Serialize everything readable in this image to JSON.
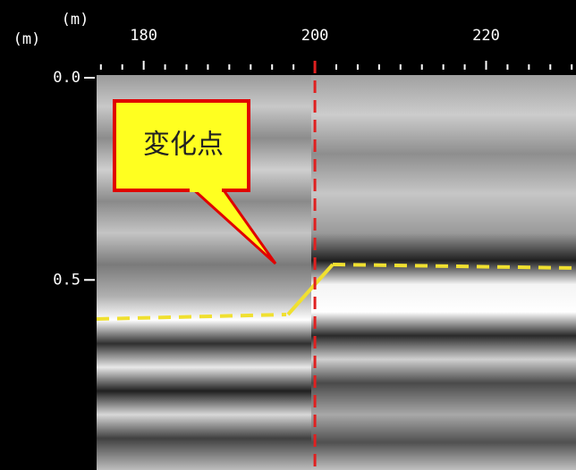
{
  "chart_data": {
    "type": "radargram",
    "x_unit": "(m)",
    "y_unit": "(m)",
    "annotation": "変化点",
    "xlim": [
      174.5,
      230.5
    ],
    "xticks": [
      180,
      200,
      220
    ],
    "ylim": [
      0,
      0.97
    ],
    "yticks": [
      {
        "value": 0,
        "label": "0.0"
      },
      0.5
    ],
    "marker_color": "#e02020",
    "interface_color": "#f0e030"
  }
}
